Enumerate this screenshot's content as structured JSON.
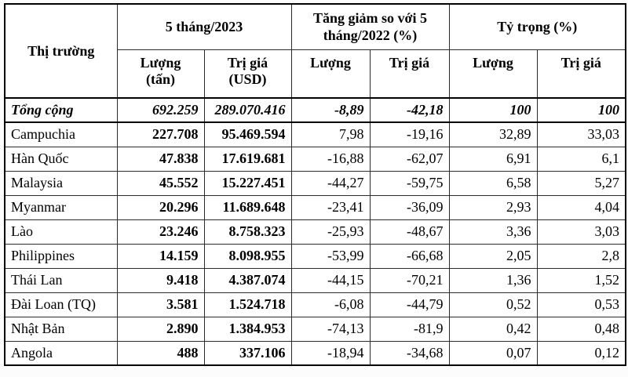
{
  "chart_data": {
    "type": "table",
    "header": {
      "market_label": "Thị trường",
      "groups": [
        {
          "label": "5 tháng/2023",
          "sub": [
            "Lượng\n(tấn)",
            "Trị giá\n(USD)"
          ]
        },
        {
          "label": "Tăng giảm so với 5\ntháng/2022 (%)",
          "sub": [
            "Lượng",
            "Trị giá"
          ]
        },
        {
          "label": "Tỷ trọng (%)",
          "sub": [
            "Lượng",
            "Trị giá"
          ]
        }
      ]
    },
    "rows": [
      {
        "market": "Tổng cộng",
        "values": [
          "692.259",
          "289.070.416",
          "-8,89",
          "-42,18",
          "100",
          "100"
        ],
        "emphasis": true
      },
      {
        "market": "Campuchia",
        "values": [
          "227.708",
          "95.469.594",
          "7,98",
          "-19,16",
          "32,89",
          "33,03"
        ]
      },
      {
        "market": "Hàn Quốc",
        "values": [
          "47.838",
          "17.619.681",
          "-16,88",
          "-62,07",
          "6,91",
          "6,1"
        ]
      },
      {
        "market": "Malaysia",
        "values": [
          "45.552",
          "15.227.451",
          "-44,27",
          "-59,75",
          "6,58",
          "5,27"
        ]
      },
      {
        "market": "Myanmar",
        "values": [
          "20.296",
          "11.689.648",
          "-23,41",
          "-36,09",
          "2,93",
          "4,04"
        ]
      },
      {
        "market": "Lào",
        "values": [
          "23.246",
          "8.758.323",
          "-25,93",
          "-48,67",
          "3,36",
          "3,03"
        ]
      },
      {
        "market": "Philippines",
        "values": [
          "14.159",
          "8.098.955",
          "-53,99",
          "-66,68",
          "2,05",
          "2,8"
        ]
      },
      {
        "market": "Thái Lan",
        "values": [
          "9.418",
          "4.387.074",
          "-44,15",
          "-70,21",
          "1,36",
          "1,52"
        ]
      },
      {
        "market": "Đài Loan (TQ)",
        "values": [
          "3.581",
          "1.524.718",
          "-6,08",
          "-44,79",
          "0,52",
          "0,53"
        ]
      },
      {
        "market": "Nhật Bản",
        "values": [
          "2.890",
          "1.384.953",
          "-74,13",
          "-81,9",
          "0,42",
          "0,48"
        ]
      },
      {
        "market": "Angola",
        "values": [
          "488",
          "337.106",
          "-18,94",
          "-34,68",
          "0,07",
          "0,12"
        ]
      }
    ]
  }
}
